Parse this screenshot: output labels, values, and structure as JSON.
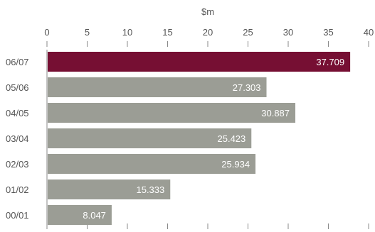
{
  "chart_data": {
    "type": "bar",
    "orientation": "horizontal",
    "unit_label": "$m",
    "xlim": [
      0,
      40
    ],
    "xticks": [
      0,
      5,
      10,
      15,
      20,
      25,
      30,
      35,
      40
    ],
    "categories": [
      "06/07",
      "05/06",
      "04/05",
      "03/04",
      "02/03",
      "01/02",
      "00/01"
    ],
    "values": [
      37.709,
      27.303,
      30.887,
      25.423,
      25.934,
      15.333,
      8.047
    ],
    "value_labels": [
      "37.709",
      "27.303",
      "30.887",
      "25.423",
      "25.934",
      "15.333",
      "8.047"
    ],
    "highlight_category": "06/07",
    "colors": {
      "highlight": "#760F33",
      "default": "#9B9D95",
      "axis": "#8A8A8A"
    },
    "grid": false
  }
}
